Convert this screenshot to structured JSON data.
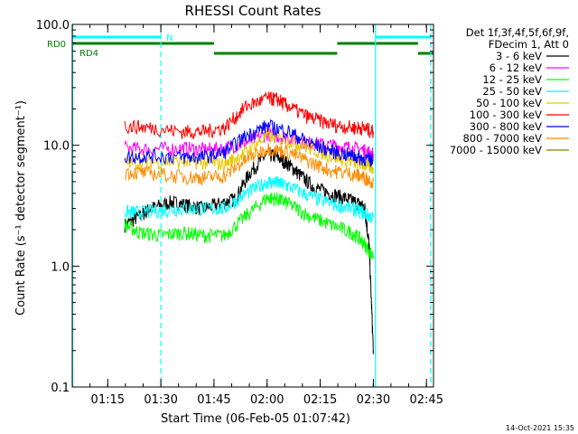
{
  "chart_data": {
    "type": "line",
    "title": "RHESSI Count Rates",
    "xlabel": "Start Time (06-Feb-05 01:07:42)",
    "ylabel": "Count Rate (s⁻¹ detector segment⁻¹)",
    "y_scale": "log",
    "ylim": [
      0.1,
      100
    ],
    "xlim": [
      1.083,
      2.783
    ],
    "y_tick_labels": [
      "0.1",
      "1.0",
      "10.0",
      "100.0"
    ],
    "y_tick_values": [
      0.1,
      1,
      10,
      100
    ],
    "x_tick_labels": [
      "01:15",
      "01:30",
      "01:45",
      "02:00",
      "02:15",
      "02:30",
      "02:45"
    ],
    "x_tick_values": [
      1.25,
      1.5,
      1.75,
      2.0,
      2.25,
      2.5,
      2.75
    ],
    "legend_header": [
      "Det 1f,3f,4f,5f,6f,9f,",
      "FDecim 1, Att 0"
    ],
    "series": [
      {
        "name": "3 - 6 keV",
        "color": "#000000",
        "x": [
          1.33,
          1.4,
          1.45,
          1.55,
          1.62,
          1.7,
          1.78,
          1.85,
          1.92,
          2.0,
          2.05,
          2.1,
          2.15,
          2.22,
          2.3,
          2.38,
          2.43,
          2.46,
          2.48,
          2.5
        ],
        "values": [
          2.2,
          2.6,
          3.0,
          3.4,
          3.2,
          3.0,
          3.3,
          3.6,
          6.0,
          8.5,
          8.0,
          7.0,
          5.8,
          4.5,
          4.0,
          3.6,
          3.3,
          3.0,
          1.5,
          0.2
        ]
      },
      {
        "name": "6 - 12 keV",
        "color": "#ff00ff",
        "x": [
          1.33,
          1.45,
          1.6,
          1.7,
          1.8,
          1.9,
          2.0,
          2.1,
          2.2,
          2.3,
          2.38,
          2.45,
          2.5
        ],
        "values": [
          9.5,
          9.3,
          9.5,
          9.2,
          9.5,
          10.5,
          12.5,
          11.5,
          10.5,
          10.0,
          9.6,
          9.2,
          8.5
        ]
      },
      {
        "name": "12 - 25 keV",
        "color": "#00ff00",
        "x": [
          1.33,
          1.4,
          1.5,
          1.6,
          1.7,
          1.8,
          1.9,
          2.0,
          2.05,
          2.1,
          2.2,
          2.3,
          2.4,
          2.45,
          2.5
        ],
        "values": [
          2.2,
          1.9,
          1.8,
          1.9,
          1.8,
          1.8,
          2.6,
          3.7,
          3.6,
          3.3,
          2.6,
          2.2,
          1.9,
          1.6,
          1.2
        ]
      },
      {
        "name": "25 - 50 keV",
        "color": "#00ffff",
        "x": [
          1.33,
          1.4,
          1.5,
          1.6,
          1.7,
          1.8,
          1.9,
          2.0,
          2.05,
          2.1,
          2.2,
          2.3,
          2.4,
          2.45,
          2.5
        ],
        "values": [
          2.8,
          2.8,
          2.9,
          3.0,
          3.0,
          3.0,
          4.0,
          5.0,
          4.9,
          4.6,
          3.8,
          3.3,
          3.0,
          2.8,
          2.5
        ]
      },
      {
        "name": "50 - 100 keV",
        "color": "#e8c800",
        "x": [
          1.33,
          1.45,
          1.6,
          1.7,
          1.8,
          1.9,
          2.0,
          2.1,
          2.2,
          2.3,
          2.4,
          2.45,
          2.5
        ],
        "values": [
          7.2,
          7.3,
          7.3,
          7.2,
          7.0,
          8.8,
          12.0,
          11.0,
          9.5,
          8.2,
          7.3,
          7.0,
          6.5
        ]
      },
      {
        "name": "100 - 300 keV",
        "color": "#ff0000",
        "x": [
          1.33,
          1.45,
          1.6,
          1.7,
          1.8,
          1.9,
          2.0,
          2.05,
          2.1,
          2.2,
          2.3,
          2.4,
          2.45,
          2.5
        ],
        "values": [
          14.5,
          14.0,
          13.0,
          13.0,
          14.0,
          21.0,
          24.5,
          24.0,
          21.0,
          17.0,
          15.0,
          14.0,
          14.0,
          13.0
        ]
      },
      {
        "name": "300 - 800 keV",
        "color": "#0000ff",
        "x": [
          1.33,
          1.45,
          1.6,
          1.7,
          1.8,
          1.9,
          2.0,
          2.1,
          2.2,
          2.3,
          2.4,
          2.45,
          2.5
        ],
        "values": [
          8.0,
          8.2,
          8.0,
          8.0,
          8.8,
          12.0,
          14.5,
          13.0,
          10.5,
          9.0,
          8.2,
          7.8,
          7.5
        ]
      },
      {
        "name": "800 - 7000 keV",
        "color": "#ff8c00",
        "x": [
          1.33,
          1.45,
          1.6,
          1.7,
          1.8,
          1.9,
          2.0,
          2.1,
          2.2,
          2.3,
          2.4,
          2.45,
          2.5
        ],
        "values": [
          6.0,
          5.9,
          5.5,
          5.4,
          5.6,
          7.6,
          9.5,
          8.8,
          7.3,
          6.2,
          5.8,
          5.5,
          5.0
        ]
      },
      {
        "name": "7000 - 15000 keV",
        "color": "#808000",
        "x": [],
        "values": []
      }
    ],
    "annotations": [
      {
        "label": "RD0",
        "color": "#008000"
      },
      {
        "label": "RD4",
        "color": "#008000"
      },
      {
        "label": "N",
        "color": "#00ffff"
      }
    ],
    "attenuator_segments": {
      "RD0_high": [
        [
          1.083,
          1.75
        ],
        [
          2.33,
          2.71
        ]
      ],
      "RD0_low": [
        [
          1.75,
          2.33
        ],
        [
          2.71,
          2.783
        ]
      ],
      "N_bar": [
        [
          1.083,
          1.5
        ],
        [
          2.51,
          2.77
        ]
      ]
    },
    "vertical_lines": [
      {
        "x": 1.085,
        "style": "solid",
        "color": "#00ffff"
      },
      {
        "x": 1.5,
        "style": "dashed",
        "color": "#00ffff"
      },
      {
        "x": 2.51,
        "style": "solid",
        "color": "#00ffff"
      },
      {
        "x": 2.77,
        "style": "dashed",
        "color": "#00ffff"
      }
    ]
  },
  "footer": {
    "timestamp": "14-Oct-2021 15:35"
  }
}
